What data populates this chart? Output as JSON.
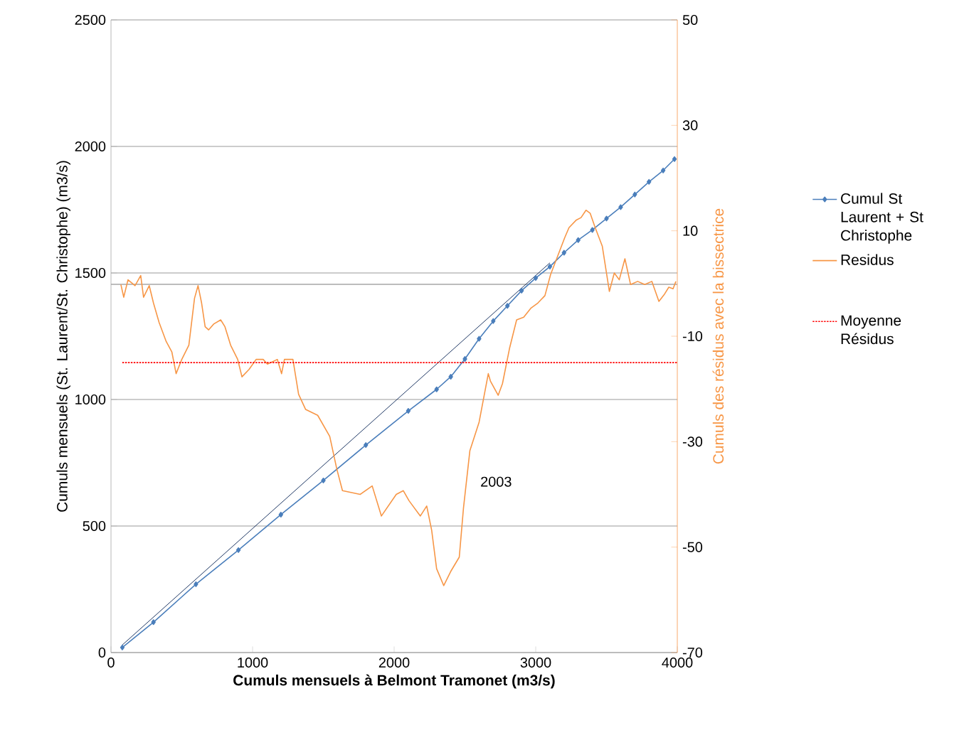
{
  "chart_data": {
    "type": "line",
    "xlabel": "Cumuls mensuels à Belmont Tramonet (m3/s)",
    "ylabel": "Cumuls mensuels (St. Laurent/St. Christophe) (m3/s)",
    "y2label": "Cumuls des résidus avec la bissectrice",
    "xlim": [
      0,
      4000
    ],
    "xticks": [
      0,
      1000,
      2000,
      3000,
      4000
    ],
    "ylim": [
      0,
      2500
    ],
    "yticks": [
      0,
      500,
      1000,
      1500,
      2000,
      2500
    ],
    "y2lim": [
      -70,
      50
    ],
    "y2ticks": [
      -70,
      -50,
      -30,
      -10,
      10,
      30,
      50
    ],
    "grid": "y",
    "legend": "right",
    "ref_lines": [
      {
        "axis": "y",
        "value": 1455,
        "color": "#a6a6a6"
      }
    ],
    "annotations": [
      "2003"
    ],
    "series": [
      {
        "name": "Cumul St Laurent + St Christophe",
        "color": "#4a7ebb",
        "marker": "diamond",
        "line_style": "solid",
        "x": [
          80,
          300,
          600,
          900,
          1200,
          1500,
          1800,
          2100,
          2300,
          2400,
          2500,
          2600,
          2700,
          2800,
          2900,
          3000,
          3100,
          3200,
          3300,
          3400,
          3500,
          3600,
          3700,
          3800,
          3900,
          3980
        ],
        "values": [
          20,
          120,
          270,
          405,
          545,
          680,
          820,
          955,
          1040,
          1090,
          1160,
          1240,
          1310,
          1370,
          1430,
          1480,
          1525,
          1580,
          1630,
          1670,
          1715,
          1760,
          1810,
          1860,
          1905,
          1950
        ]
      },
      {
        "color": "#1f3864",
        "marker": "none",
        "line_style": "solid",
        "x": [
          80,
          3100
        ],
        "values": [
          30,
          1540
        ]
      },
      {
        "name": "Residus",
        "color": "#f79646",
        "axis": "y2",
        "marker": "none",
        "line_style": "solid",
        "x": [
          70,
          90,
          120,
          170,
          210,
          230,
          270,
          300,
          340,
          390,
          430,
          460,
          500,
          550,
          590,
          615,
          640,
          665,
          690,
          725,
          775,
          805,
          845,
          895,
          925,
          975,
          1025,
          1075,
          1105,
          1175,
          1205,
          1225,
          1285,
          1325,
          1375,
          1460,
          1545,
          1595,
          1635,
          1760,
          1845,
          1910,
          2015,
          2065,
          2105,
          2185,
          2230,
          2265,
          2300,
          2350,
          2400,
          2460,
          2490,
          2535,
          2600,
          2665,
          2680,
          2735,
          2765,
          2815,
          2865,
          2915,
          2965,
          3015,
          3065,
          3105,
          3155,
          3205,
          3235,
          3285,
          3320,
          3355,
          3385,
          3420,
          3470,
          3520,
          3555,
          3590,
          3630,
          3670,
          3720,
          3770,
          3820,
          3870,
          3910,
          3940,
          3970,
          3990
        ],
        "values": [
          -0.2,
          -2.6,
          0.7,
          -0.4,
          1.5,
          -2.6,
          -0.4,
          -3.7,
          -7.4,
          -11,
          -13,
          -17.1,
          -14.4,
          -11.7,
          -2.8,
          -0.4,
          -3.7,
          -8.2,
          -8.8,
          -7.7,
          -6.9,
          -8.2,
          -11.7,
          -14.4,
          -17.7,
          -16.3,
          -14.4,
          -14.4,
          -15.3,
          -14.4,
          -17.1,
          -14.4,
          -14.4,
          -21,
          -23.9,
          -25,
          -29,
          -35.2,
          -39.3,
          -40,
          -38.4,
          -44.1,
          -40,
          -39.3,
          -41.2,
          -44.1,
          -42.2,
          -46.8,
          -54.1,
          -57.3,
          -54.6,
          -51.9,
          -42.5,
          -31.7,
          -26.3,
          -17.1,
          -18.5,
          -21.2,
          -19,
          -12.3,
          -6.9,
          -6.4,
          -4.7,
          -3.7,
          -2.3,
          1.7,
          5.2,
          8.7,
          10.6,
          12,
          12.5,
          13.9,
          13.3,
          10.6,
          7.1,
          -1.5,
          2,
          0.7,
          4.7,
          -0.2,
          0.4,
          -0.2,
          0.4,
          -3.4,
          -2,
          -0.7,
          -1,
          0.4
        ]
      },
      {
        "name": "Moyenne Résidus",
        "color": "#ff0000",
        "axis": "y2",
        "marker": "none",
        "line_style": "dotted",
        "x": [
          80,
          4000
        ],
        "values": [
          -15,
          -15
        ]
      }
    ]
  }
}
